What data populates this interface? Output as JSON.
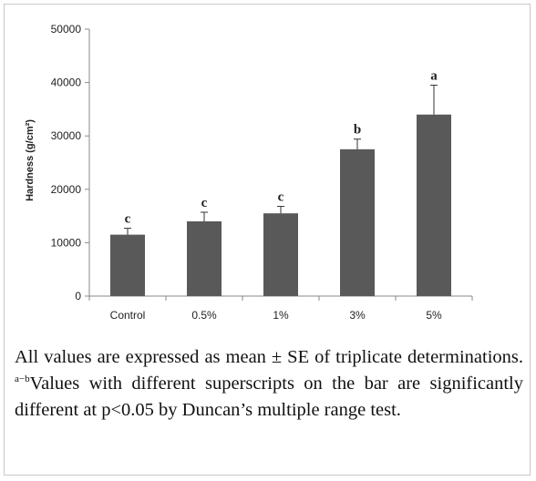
{
  "chart_data": {
    "type": "bar",
    "categories": [
      "Control",
      "0.5%",
      "1%",
      "3%",
      "5%"
    ],
    "values": [
      11500,
      14000,
      15500,
      27500,
      34000
    ],
    "errors": [
      1200,
      1700,
      1300,
      1900,
      5500
    ],
    "significance": [
      "c",
      "c",
      "c",
      "b",
      "a"
    ],
    "ylabel": "Hardness (g/cm²)",
    "ylim": [
      0,
      50000
    ],
    "yticks": [
      0,
      10000,
      20000,
      30000,
      40000,
      50000
    ],
    "grid": false,
    "bar_color": "#595959"
  },
  "caption": {
    "part1": "All values are expressed as mean ± SE of triplicate determinations. ",
    "superscript": "a−b",
    "part2": "Values with different superscripts on the bar are significantly different at p<0.05 by Duncan’s multiple range test."
  }
}
